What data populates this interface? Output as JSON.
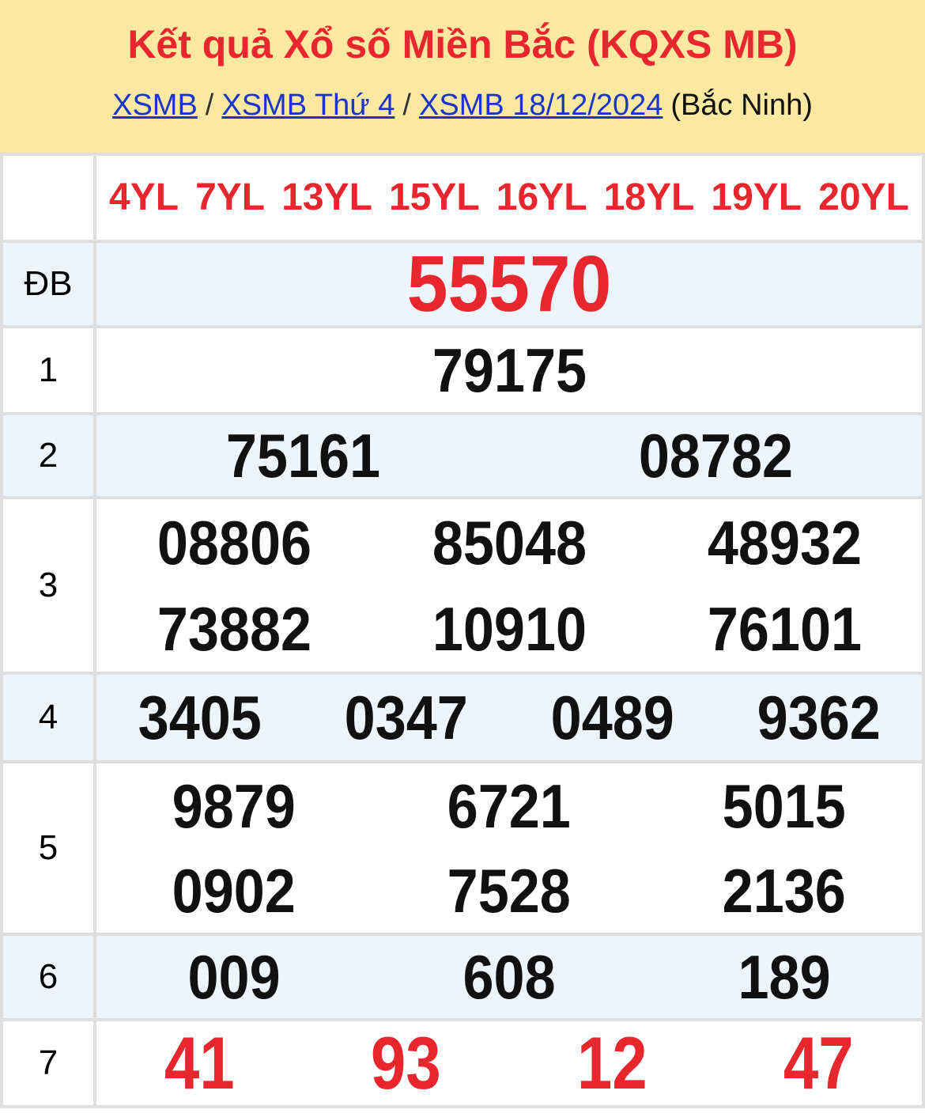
{
  "header": {
    "title": "Kết quả Xổ số Miền Bắc (KQXS MB)",
    "breadcrumb": {
      "links": [
        "XSMB",
        "XSMB Thứ 4",
        "XSMB 18/12/2024"
      ],
      "separator": "/",
      "region": "(Bắc Ninh)"
    }
  },
  "table": {
    "column_headers": [
      "4YL",
      "7YL",
      "13YL",
      "15YL",
      "16YL",
      "18YL",
      "19YL",
      "20YL"
    ],
    "rows": [
      {
        "label": "ĐB",
        "lines": [
          [
            "55570"
          ]
        ],
        "number_color": "red",
        "number_size": "xl"
      },
      {
        "label": "1",
        "lines": [
          [
            "79175"
          ]
        ]
      },
      {
        "label": "2",
        "lines": [
          [
            "75161",
            "08782"
          ]
        ]
      },
      {
        "label": "3",
        "lines": [
          [
            "08806",
            "85048",
            "48932"
          ],
          [
            "73882",
            "10910",
            "76101"
          ]
        ]
      },
      {
        "label": "4",
        "lines": [
          [
            "3405",
            "0347",
            "0489",
            "9362"
          ]
        ]
      },
      {
        "label": "5",
        "lines": [
          [
            "9879",
            "6721",
            "5015"
          ],
          [
            "0902",
            "7528",
            "2136"
          ]
        ]
      },
      {
        "label": "6",
        "lines": [
          [
            "009",
            "608",
            "189"
          ]
        ]
      },
      {
        "label": "7",
        "lines": [
          [
            "41",
            "93",
            "12",
            "47"
          ]
        ],
        "number_color": "red",
        "number_size": "lg"
      }
    ]
  },
  "colors": {
    "accent_red": "#e8262d",
    "link_blue": "#1a35c9",
    "header_bg": "#fce8a0",
    "row_alt_bg": "#eef4fc",
    "border_gray": "#dedede",
    "num_black": "#111111"
  }
}
